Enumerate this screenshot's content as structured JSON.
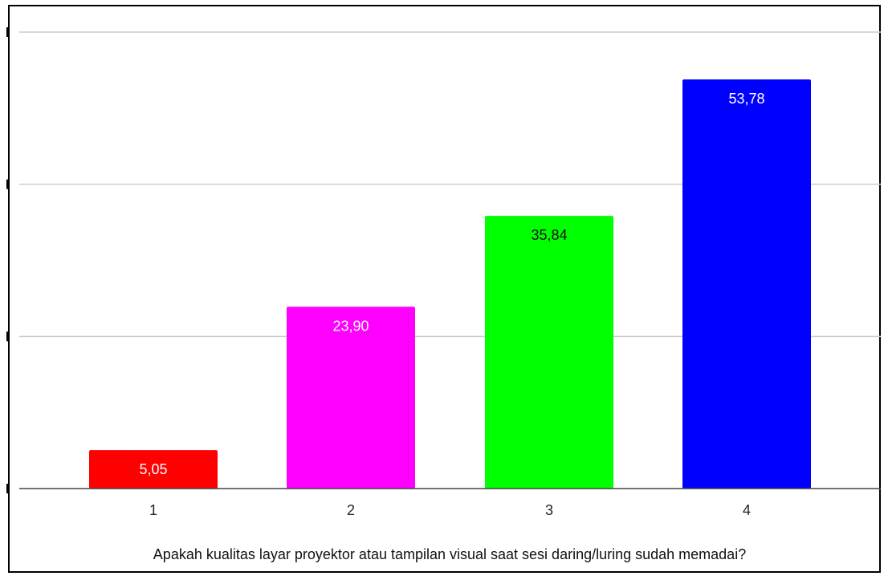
{
  "chart_data": {
    "type": "bar",
    "categories": [
      "1",
      "2",
      "3",
      "4"
    ],
    "values": [
      5.05,
      23.9,
      35.84,
      53.78
    ],
    "data_labels": [
      "5,05",
      "23,90",
      "35,84",
      "53,78"
    ],
    "colors": [
      "#ff0000",
      "#ff00ff",
      "#00ff00",
      "#0000ff"
    ],
    "label_colors": [
      "#ffffff",
      "#ffffff",
      "#111111",
      "#ffffff"
    ],
    "title": "",
    "xlabel": "Apakah kualitas layar proyektor atau tampilan visual saat sesi daring/luring sudah memadai?",
    "ylabel": "",
    "ylim": [
      0,
      60
    ],
    "gridlines": [
      0,
      20,
      40,
      60
    ],
    "grid": true,
    "legend": "none"
  }
}
